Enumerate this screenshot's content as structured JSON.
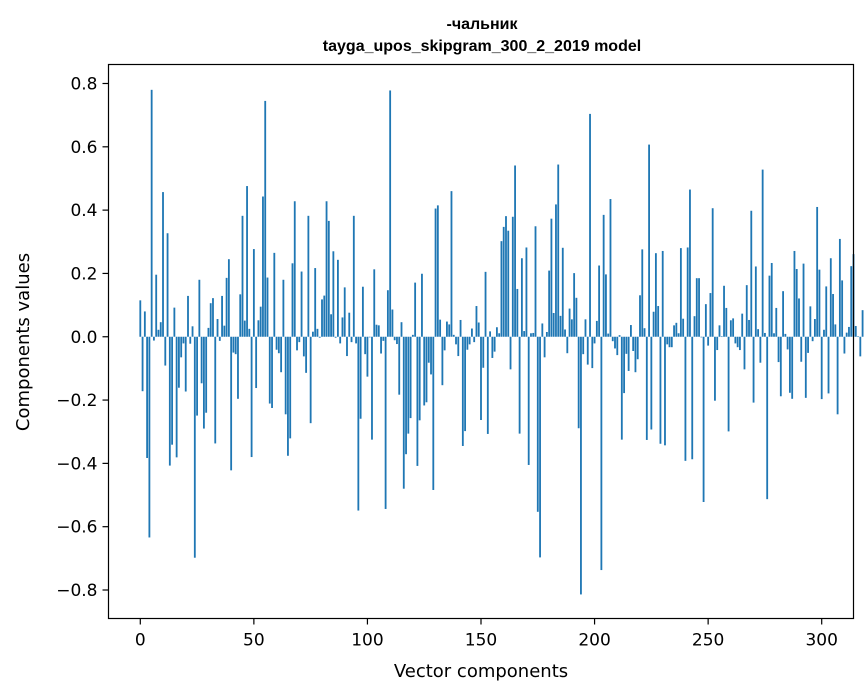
{
  "chart_data": {
    "type": "bar",
    "title": [
      "-чальник",
      "tayga_upos_skipgram_300_2_2019 model"
    ],
    "xlabel": "Vector components",
    "ylabel": "Components values",
    "xlim": [
      -14,
      314
    ],
    "ylim": [
      -0.89,
      0.86
    ],
    "xticks": [
      0,
      50,
      100,
      150,
      200,
      250,
      300
    ],
    "xtick_labels": [
      "0",
      "50",
      "100",
      "150",
      "200",
      "250",
      "300"
    ],
    "yticks": [
      0.8,
      0.6,
      0.4,
      0.2,
      0.0,
      -0.2,
      -0.4,
      -0.6,
      -0.8
    ],
    "ytick_labels": [
      "0.8",
      "0.6",
      "0.4",
      "0.2",
      "0.0",
      "−0.2",
      "−0.4",
      "−0.6",
      "−0.8"
    ],
    "grid": false,
    "bar_color": "#1f77b4",
    "values": [
      0.115,
      -0.172,
      0.08,
      -0.383,
      -0.634,
      0.78,
      -0.012,
      0.196,
      0.022,
      0.046,
      0.457,
      -0.091,
      0.327,
      -0.407,
      -0.341,
      0.092,
      -0.381,
      -0.161,
      -0.065,
      -0.021,
      -0.173,
      0.129,
      -0.022,
      0.033,
      -0.698,
      -0.249,
      0.18,
      -0.147,
      -0.29,
      -0.24,
      0.028,
      0.106,
      0.122,
      -0.337,
      0.056,
      -0.013,
      0.129,
      0.035,
      0.186,
      0.245,
      -0.422,
      -0.05,
      -0.055,
      -0.196,
      0.134,
      0.382,
      0.051,
      0.476,
      0.025,
      -0.38,
      0.277,
      -0.162,
      0.052,
      0.095,
      0.443,
      0.745,
      0.187,
      -0.211,
      -0.225,
      0.265,
      -0.041,
      -0.052,
      -0.112,
      0.18,
      -0.245,
      -0.376,
      -0.321,
      0.232,
      0.428,
      -0.043,
      -0.017,
      0.206,
      -0.062,
      -0.114,
      0.382,
      -0.273,
      0.016,
      0.217,
      0.025,
      -0.003,
      0.118,
      0.13,
      0.428,
      0.366,
      0.071,
      0.27,
      -0.003,
      0.243,
      -0.021,
      0.061,
      0.156,
      -0.061,
      0.076,
      -0.017,
      0.382,
      -0.021,
      -0.549,
      -0.259,
      0.158,
      -0.055,
      -0.126,
      -0.001,
      -0.325,
      0.213,
      0.038,
      0.036,
      -0.053,
      -0.013,
      -0.544,
      0.147,
      0.778,
      0.086,
      -0.011,
      -0.023,
      -0.183,
      0.046,
      -0.48,
      -0.371,
      -0.306,
      -0.257,
      0.006,
      0.171,
      -0.408,
      -0.264,
      0.199,
      -0.217,
      -0.207,
      -0.082,
      -0.119,
      -0.484,
      0.405,
      0.415,
      0.054,
      -0.153,
      -0.043,
      0.048,
      0.039,
      0.46,
      0.006,
      -0.024,
      -0.061,
      0.053,
      -0.345,
      -0.298,
      -0.041,
      -0.024,
      0.026,
      -0.017,
      0.097,
      0.045,
      -0.263,
      -0.098,
      0.205,
      -0.307,
      0.017,
      -0.067,
      -0.047,
      0.03,
      0.011,
      0.302,
      0.347,
      0.381,
      0.335,
      -0.103,
      0.379,
      0.541,
      0.151,
      -0.306,
      0.248,
      0.018,
      0.282,
      -0.405,
      0.011,
      0.012,
      0.349,
      -0.553,
      -0.697,
      0.042,
      -0.065,
      0.015,
      0.209,
      0.373,
      0.075,
      0.418,
      0.544,
      0.066,
      0.281,
      0.023,
      -0.052,
      0.089,
      0.055,
      0.201,
      0.123,
      -0.289,
      -0.814,
      -0.055,
      0.055,
      -0.088,
      0.704,
      -0.099,
      -0.021,
      0.05,
      0.225,
      -0.737,
      0.385,
      0.197,
      0.01,
      0.435,
      -0.014,
      -0.037,
      -0.058,
      0.005,
      -0.325,
      -0.178,
      -0.054,
      -0.108,
      0.037,
      -0.045,
      -0.112,
      -0.071,
      0.131,
      0.276,
      0.027,
      -0.326,
      0.607,
      -0.293,
      0.079,
      0.264,
      0.097,
      -0.338,
      0.271,
      -0.343,
      -0.024,
      -0.033,
      -0.033,
      0.036,
      0.044,
      0.011,
      0.28,
      0.057,
      -0.392,
      0.282,
      0.465,
      -0.387,
      0.065,
      0.185,
      0.185,
      0.0,
      -0.522,
      0.103,
      -0.028,
      0.138,
      0.406,
      -0.202,
      -0.042,
      0.036,
      0.001,
      0.161,
      0.091,
      -0.299,
      0.052,
      0.058,
      -0.021,
      -0.033,
      -0.042,
      0.073,
      -0.103,
      0.163,
      0.053,
      0.398,
      -0.208,
      0.222,
      0.024,
      -0.082,
      0.528,
      0.012,
      -0.513,
      0.193,
      0.233,
      0.011,
      0.091,
      -0.08,
      -0.188,
      0.144,
      0.009,
      -0.04,
      -0.177,
      -0.196,
      0.271,
      0.214,
      0.121,
      -0.079,
      0.231,
      -0.193,
      -0.051,
      0.096,
      -0.014,
      0.056,
      0.41,
      0.212,
      -0.197,
      0.022,
      0.159,
      -0.179,
      0.248,
      0.135,
      0.039,
      -0.245,
      0.309,
      0.178,
      -0.053,
      0.013,
      0.031,
      0.223,
      0.261,
      0.034,
      0.001,
      -0.062,
      0.084
    ]
  }
}
